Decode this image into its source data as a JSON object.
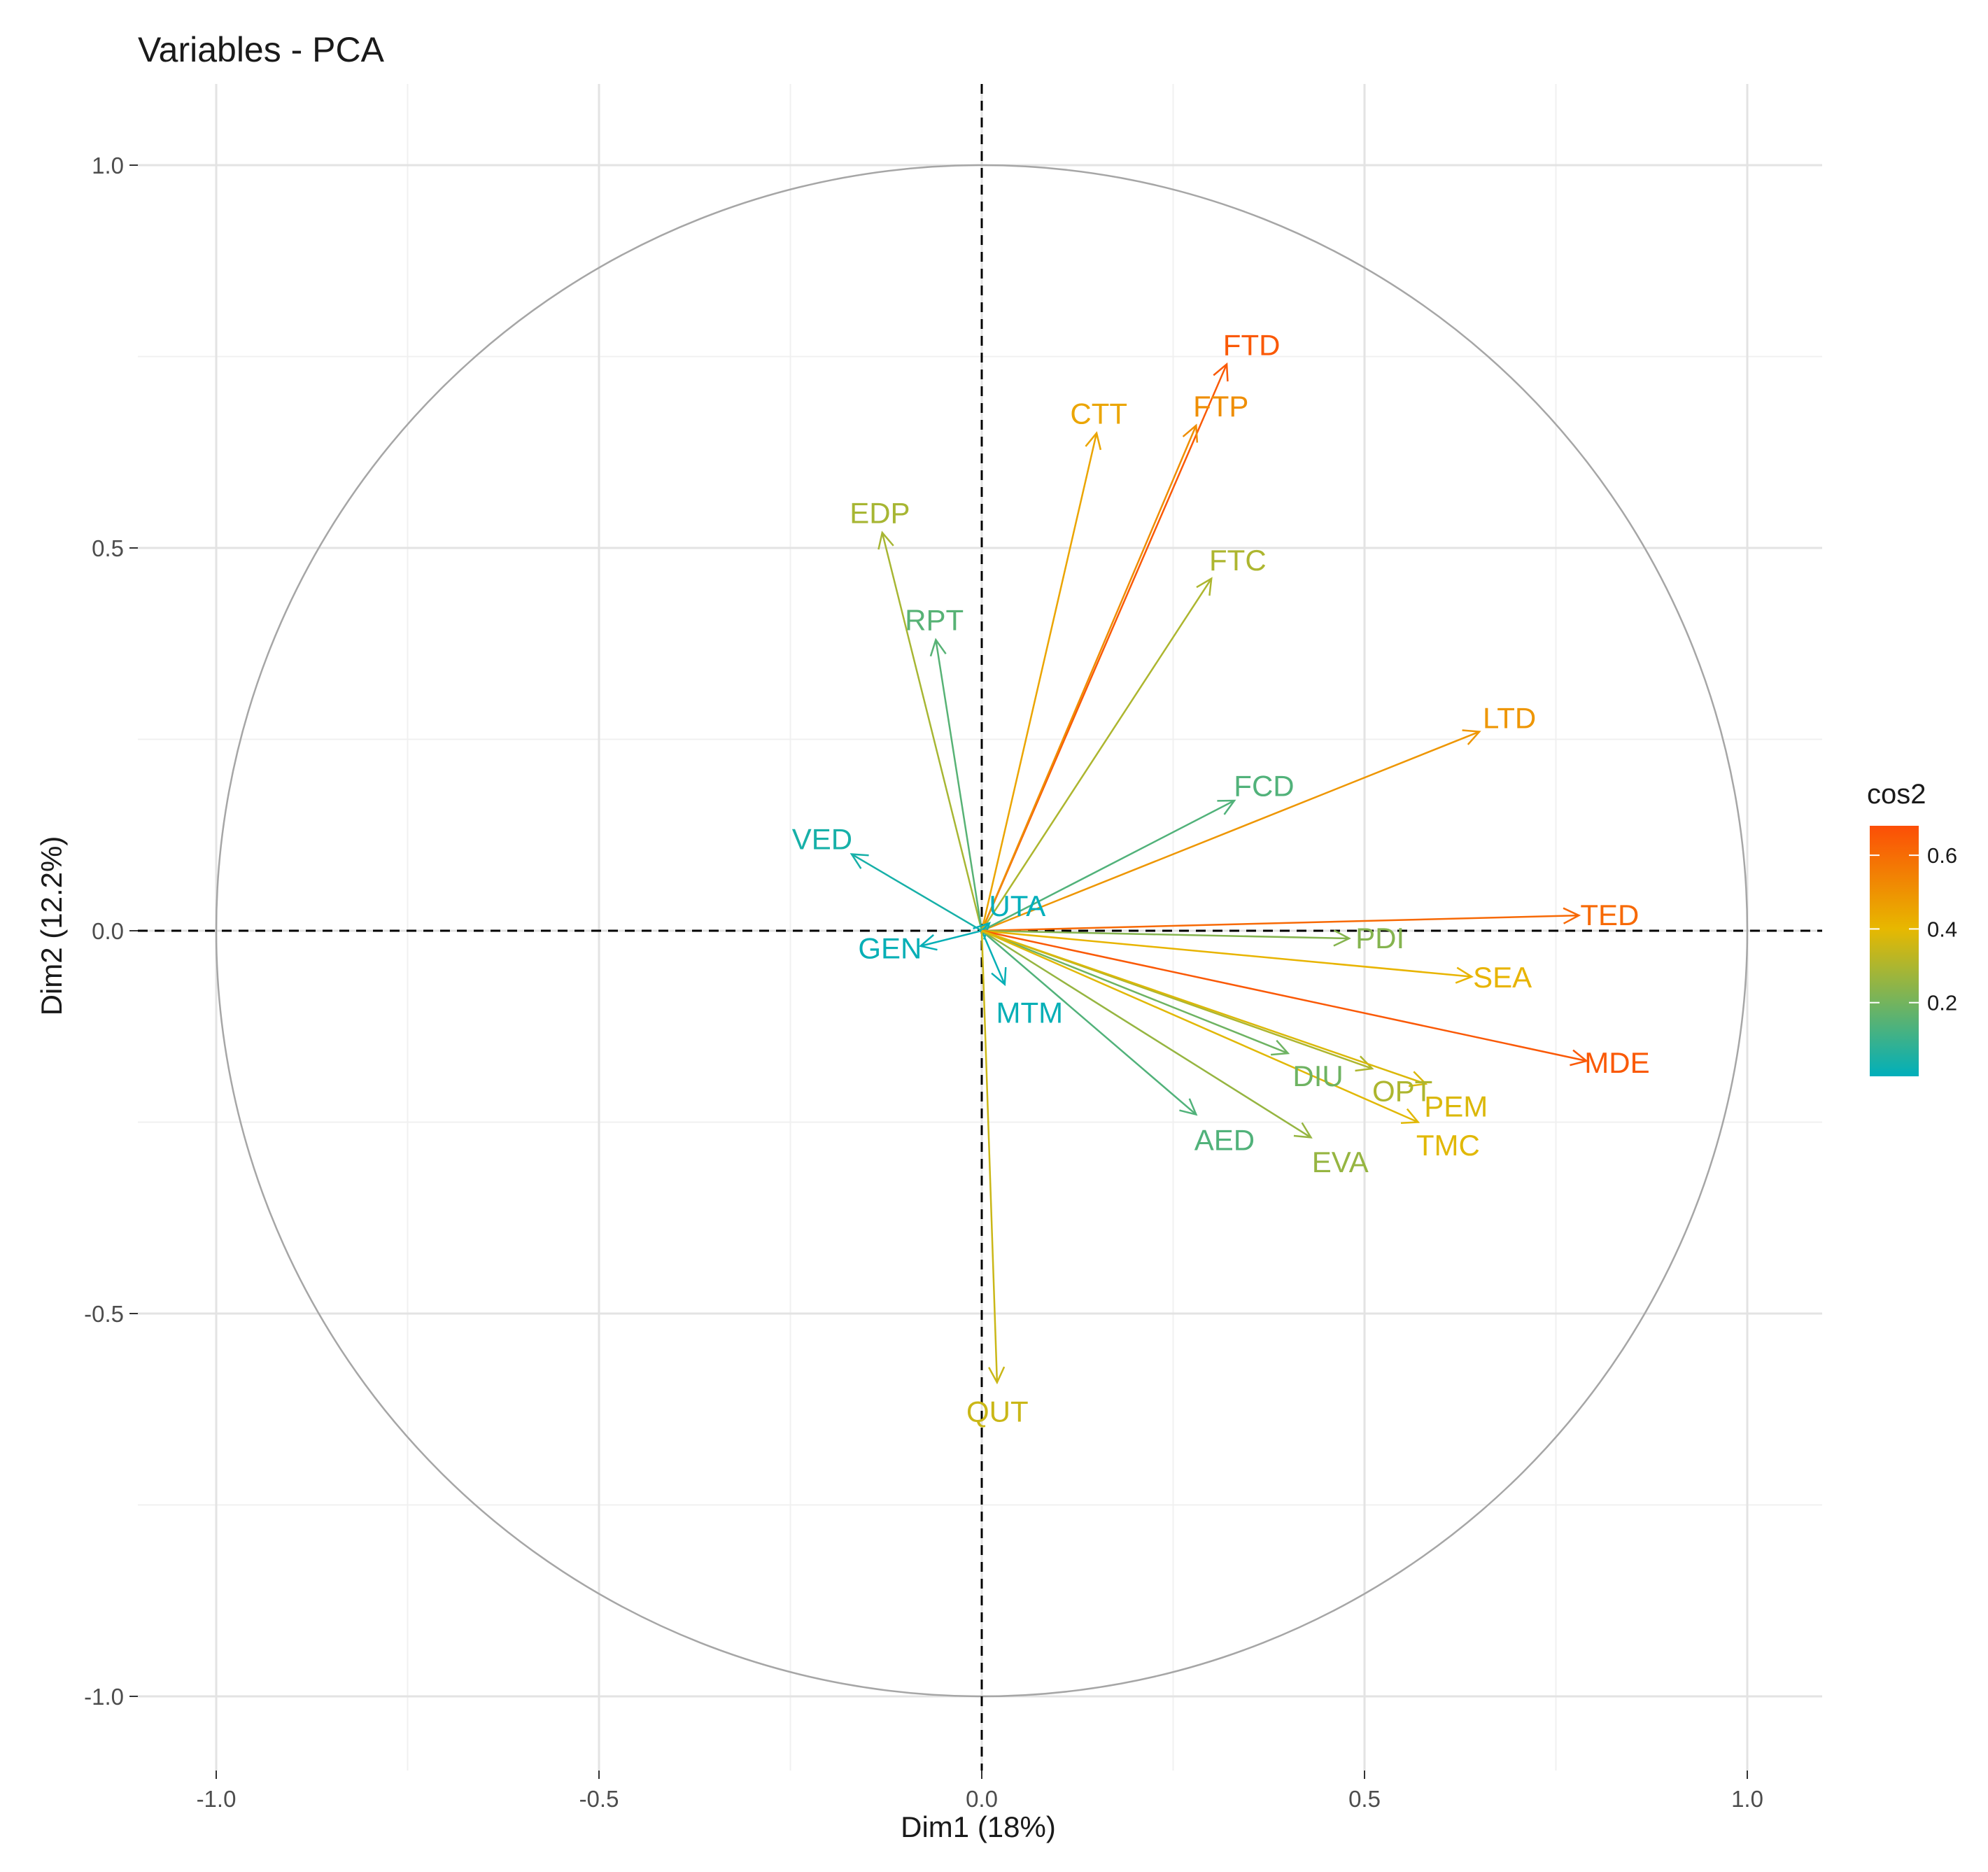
{
  "chart_data": {
    "type": "scatter",
    "subtype": "pca-variable-correlation-circle",
    "title": "Variables - PCA",
    "xlabel": "Dim1 (18%)",
    "ylabel": "Dim2 (12.2%)",
    "xlim": [
      -1.1,
      1.1
    ],
    "ylim": [
      -1.1,
      1.1
    ],
    "xticks": [
      -1.0,
      -0.5,
      0.0,
      0.5,
      1.0
    ],
    "xtick_labels": [
      "-1.0",
      "-0.5",
      "0.0",
      "0.5",
      "1.0"
    ],
    "yticks": [
      -1.0,
      -0.5,
      0.0,
      0.5,
      1.0
    ],
    "ytick_labels": [
      "-1.0",
      "-0.5",
      "0.0",
      "0.5",
      "1.0"
    ],
    "grid": true,
    "unit_circle": true,
    "legend": {
      "title": "cos2",
      "placement": "right",
      "range": [
        0.0,
        0.68
      ],
      "ticks": [
        0.2,
        0.4,
        0.6
      ],
      "tick_labels": [
        "0.2",
        "0.4",
        "0.6"
      ],
      "colors": {
        "low": "#00AFBB",
        "mid": "#E7B800",
        "high": "#FC4E07"
      },
      "midpoint": 0.4
    },
    "variables": [
      {
        "name": "FTD",
        "x": 0.32,
        "y": 0.74,
        "cos2": 0.65
      },
      {
        "name": "FTP",
        "x": 0.28,
        "y": 0.66,
        "cos2": 0.51
      },
      {
        "name": "CTT",
        "x": 0.15,
        "y": 0.65,
        "cos2": 0.45
      },
      {
        "name": "EDP",
        "x": -0.13,
        "y": 0.52,
        "cos2": 0.29
      },
      {
        "name": "FTC",
        "x": 0.3,
        "y": 0.46,
        "cos2": 0.3
      },
      {
        "name": "RPT",
        "x": -0.06,
        "y": 0.38,
        "cos2": 0.15
      },
      {
        "name": "LTD",
        "x": 0.65,
        "y": 0.26,
        "cos2": 0.49
      },
      {
        "name": "FCD",
        "x": 0.33,
        "y": 0.17,
        "cos2": 0.14
      },
      {
        "name": "VED",
        "x": -0.17,
        "y": 0.1,
        "cos2": 0.04
      },
      {
        "name": "UTA",
        "x": 0.01,
        "y": 0.01,
        "cos2": 0.0
      },
      {
        "name": "GEN",
        "x": -0.08,
        "y": -0.02,
        "cos2": 0.01
      },
      {
        "name": "MTM",
        "x": 0.03,
        "y": -0.07,
        "cos2": 0.01
      },
      {
        "name": "TED",
        "x": 0.78,
        "y": 0.02,
        "cos2": 0.61
      },
      {
        "name": "PDI",
        "x": 0.48,
        "y": -0.01,
        "cos2": 0.23
      },
      {
        "name": "SEA",
        "x": 0.64,
        "y": -0.06,
        "cos2": 0.41
      },
      {
        "name": "MDE",
        "x": 0.79,
        "y": -0.17,
        "cos2": 0.65
      },
      {
        "name": "DIU",
        "x": 0.4,
        "y": -0.16,
        "cos2": 0.19
      },
      {
        "name": "OPT",
        "x": 0.51,
        "y": -0.18,
        "cos2": 0.3
      },
      {
        "name": "PEM",
        "x": 0.58,
        "y": -0.2,
        "cos2": 0.38
      },
      {
        "name": "AED",
        "x": 0.28,
        "y": -0.24,
        "cos2": 0.14
      },
      {
        "name": "EVA",
        "x": 0.43,
        "y": -0.27,
        "cos2": 0.26
      },
      {
        "name": "TMC",
        "x": 0.57,
        "y": -0.25,
        "cos2": 0.39
      },
      {
        "name": "QUT",
        "x": 0.02,
        "y": -0.59,
        "cos2": 0.35
      }
    ]
  }
}
